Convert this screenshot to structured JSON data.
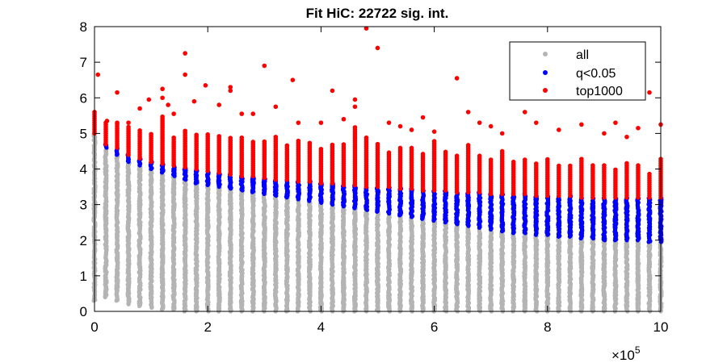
{
  "chart_data": {
    "type": "scatter",
    "title": "Fit HiC: 22722 sig. int.",
    "xlabel": "",
    "ylabel": "",
    "x_exponent_label": "×10",
    "x_exponent_power": "5",
    "xlim": [
      0,
      10
    ],
    "ylim": [
      0,
      8
    ],
    "x_ticks": [
      "0",
      "2",
      "4",
      "6",
      "8",
      "10"
    ],
    "y_ticks": [
      "0",
      "1",
      "2",
      "3",
      "4",
      "5",
      "6",
      "7",
      "8"
    ],
    "x_tick_values": [
      0,
      2,
      4,
      6,
      8,
      10
    ],
    "y_tick_values": [
      0,
      1,
      2,
      3,
      4,
      5,
      6,
      7,
      8
    ],
    "legend_position": "top-right",
    "grid": false,
    "distance_bins": [
      0,
      0.2,
      0.4,
      0.6,
      0.8,
      1.0,
      1.2,
      1.4,
      1.6,
      1.8,
      2.0,
      2.2,
      2.4,
      2.6,
      2.8,
      3.0,
      3.2,
      3.4,
      3.6,
      3.8,
      4.0,
      4.2,
      4.4,
      4.6,
      4.8,
      5.0,
      5.2,
      5.4,
      5.6,
      5.8,
      6.0,
      6.2,
      6.4,
      6.6,
      6.8,
      7.0,
      7.2,
      7.4,
      7.6,
      7.8,
      8.0,
      8.2,
      8.4,
      8.6,
      8.8,
      9.0,
      9.2,
      9.4,
      9.6,
      9.8,
      10.0
    ],
    "series": [
      {
        "name": "all",
        "color": "#b4b4b4",
        "description": "grey columns from 0 up to the q<0.05 threshold",
        "bin_max": [
          5.0,
          4.6,
          4.4,
          4.2,
          4.1,
          4.0,
          3.9,
          3.8,
          3.7,
          3.6,
          3.55,
          3.5,
          3.45,
          3.4,
          3.35,
          3.3,
          3.25,
          3.2,
          3.15,
          3.1,
          3.05,
          3.0,
          2.95,
          2.9,
          2.85,
          2.8,
          2.75,
          2.7,
          2.65,
          2.6,
          2.55,
          2.5,
          2.45,
          2.4,
          2.35,
          2.3,
          2.25,
          2.2,
          2.2,
          2.15,
          2.15,
          2.1,
          2.1,
          2.05,
          2.05,
          2.0,
          2.0,
          2.0,
          2.0,
          1.95,
          1.95
        ],
        "bin_min": [
          0.3,
          0.4,
          0.3,
          0.2,
          0.15,
          0.1,
          0.05,
          0.05,
          0.0,
          0.0,
          0.0,
          0.0,
          0.0,
          0.0,
          0.0,
          0.0,
          0.0,
          0.0,
          0.0,
          0.0,
          0.0,
          0.0,
          0.0,
          0.0,
          0.0,
          0.0,
          0.0,
          0.0,
          0.0,
          0.0,
          0.0,
          0.0,
          0.0,
          0.0,
          0.0,
          0.0,
          0.0,
          0.0,
          0.0,
          0.0,
          0.0,
          0.0,
          0.0,
          0.0,
          0.0,
          0.0,
          0.0,
          0.0,
          0.0,
          0.0,
          0.0
        ]
      },
      {
        "name": "q<0.05",
        "color": "#0000ff",
        "description": "blue columns between the significance threshold and the top1000 threshold",
        "bin_min": [
          5.0,
          4.6,
          4.4,
          4.2,
          4.1,
          4.0,
          3.9,
          3.8,
          3.7,
          3.6,
          3.55,
          3.5,
          3.45,
          3.4,
          3.35,
          3.3,
          3.25,
          3.2,
          3.15,
          3.1,
          3.05,
          3.0,
          2.95,
          2.9,
          2.85,
          2.8,
          2.75,
          2.7,
          2.65,
          2.6,
          2.55,
          2.5,
          2.45,
          2.4,
          2.35,
          2.3,
          2.25,
          2.2,
          2.2,
          2.15,
          2.15,
          2.1,
          2.1,
          2.05,
          2.05,
          2.0,
          2.0,
          2.0,
          2.0,
          1.95,
          1.95
        ],
        "bin_max": [
          5.0,
          4.7,
          4.6,
          4.4,
          4.3,
          4.2,
          4.15,
          4.1,
          4.05,
          4.0,
          3.95,
          3.9,
          3.85,
          3.8,
          3.8,
          3.75,
          3.7,
          3.7,
          3.65,
          3.65,
          3.6,
          3.6,
          3.55,
          3.55,
          3.5,
          3.5,
          3.5,
          3.45,
          3.45,
          3.4,
          3.4,
          3.4,
          3.35,
          3.35,
          3.35,
          3.3,
          3.3,
          3.3,
          3.3,
          3.25,
          3.25,
          3.25,
          3.25,
          3.2,
          3.2,
          3.2,
          3.2,
          3.2,
          3.2,
          3.2,
          3.2
        ]
      },
      {
        "name": "top1000",
        "color": "#ff0000",
        "description": "red points above the top1000 threshold with scattered outliers",
        "bin_min": [
          5.0,
          4.7,
          4.6,
          4.4,
          4.3,
          4.2,
          4.15,
          4.1,
          4.05,
          4.0,
          3.95,
          3.9,
          3.85,
          3.8,
          3.8,
          3.75,
          3.7,
          3.7,
          3.65,
          3.65,
          3.6,
          3.6,
          3.55,
          3.55,
          3.5,
          3.5,
          3.5,
          3.45,
          3.45,
          3.4,
          3.4,
          3.4,
          3.35,
          3.35,
          3.35,
          3.3,
          3.3,
          3.3,
          3.3,
          3.25,
          3.25,
          3.25,
          3.25,
          3.2,
          3.2,
          3.2,
          3.2,
          3.2,
          3.2,
          3.2,
          3.2
        ],
        "bin_max": [
          5.55,
          5.3,
          5.3,
          5.2,
          5.1,
          5.0,
          5.5,
          4.9,
          5.1,
          5.0,
          5.0,
          4.95,
          4.9,
          4.9,
          4.8,
          4.8,
          4.9,
          4.7,
          4.8,
          4.75,
          4.6,
          4.7,
          4.7,
          5.2,
          4.9,
          4.7,
          4.5,
          4.6,
          4.6,
          4.45,
          4.8,
          4.5,
          4.4,
          4.7,
          4.4,
          4.3,
          4.5,
          4.2,
          4.3,
          4.2,
          4.3,
          4.1,
          4.1,
          4.3,
          4.1,
          4.1,
          4.0,
          4.2,
          4.1,
          3.9,
          4.3
        ],
        "outliers": [
          [
            0.0,
            5.6
          ],
          [
            0.06,
            6.65
          ],
          [
            0.22,
            5.35
          ],
          [
            0.4,
            6.15
          ],
          [
            0.4,
            5.3
          ],
          [
            0.6,
            5.3
          ],
          [
            0.8,
            5.7
          ],
          [
            0.96,
            5.95
          ],
          [
            1.2,
            6.25
          ],
          [
            1.2,
            6.0
          ],
          [
            1.3,
            5.8
          ],
          [
            1.4,
            5.55
          ],
          [
            1.6,
            7.25
          ],
          [
            1.6,
            6.65
          ],
          [
            1.76,
            5.9
          ],
          [
            1.96,
            6.35
          ],
          [
            2.2,
            5.8
          ],
          [
            2.4,
            6.3
          ],
          [
            2.4,
            6.2
          ],
          [
            2.6,
            5.55
          ],
          [
            2.8,
            5.55
          ],
          [
            3.0,
            6.9
          ],
          [
            3.2,
            5.75
          ],
          [
            3.5,
            6.5
          ],
          [
            3.6,
            5.3
          ],
          [
            4.0,
            5.3
          ],
          [
            4.2,
            6.2
          ],
          [
            4.4,
            5.4
          ],
          [
            4.6,
            5.95
          ],
          [
            4.6,
            5.75
          ],
          [
            4.8,
            7.95
          ],
          [
            5.0,
            7.4
          ],
          [
            5.2,
            5.3
          ],
          [
            5.4,
            5.2
          ],
          [
            5.6,
            5.1
          ],
          [
            5.8,
            5.45
          ],
          [
            6.0,
            5.05
          ],
          [
            6.4,
            6.55
          ],
          [
            6.6,
            5.6
          ],
          [
            6.8,
            5.3
          ],
          [
            7.0,
            5.2
          ],
          [
            7.2,
            5.0
          ],
          [
            7.6,
            5.6
          ],
          [
            7.8,
            5.3
          ],
          [
            8.2,
            5.1
          ],
          [
            8.6,
            5.25
          ],
          [
            9.0,
            5.0
          ],
          [
            9.2,
            5.3
          ],
          [
            9.4,
            4.9
          ],
          [
            9.6,
            5.15
          ],
          [
            9.8,
            6.15
          ],
          [
            10.0,
            5.25
          ]
        ]
      }
    ]
  }
}
